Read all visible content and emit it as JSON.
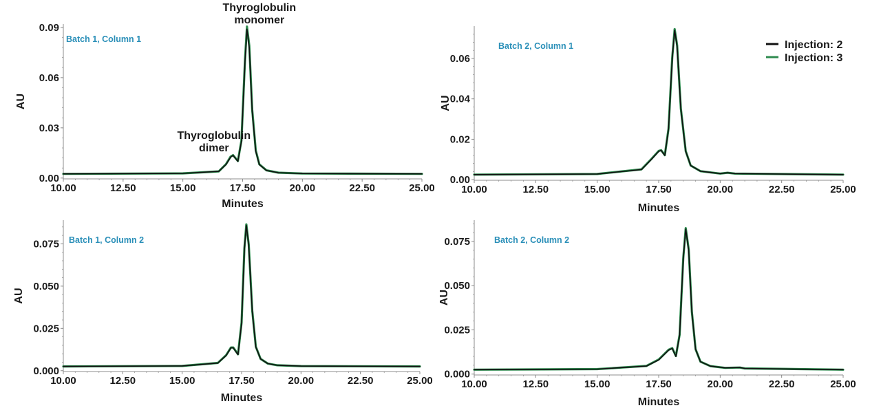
{
  "colors": {
    "injection_2": "#111111",
    "injection_3": "#2e8b4f",
    "panel_title": "#2a8fb8",
    "axis": "#8c8c8c"
  },
  "legend": {
    "placement": "top-right of upper-right panel",
    "entries": [
      {
        "label": "Injection: 2",
        "color": "#111111"
      },
      {
        "label": "Injection: 3",
        "color": "#2e8b4f"
      }
    ]
  },
  "chart_data": [
    {
      "type": "line",
      "title": "Batch 1, Column 1",
      "xlabel": "Minutes",
      "ylabel": "AU",
      "xlim": [
        10,
        25
      ],
      "ylim": [
        -0.0005,
        0.092
      ],
      "x_ticks": [
        "10.00",
        "12.50",
        "15.00",
        "17.50",
        "20.00",
        "22.50",
        "25.00"
      ],
      "y_ticks": [
        "0.00",
        "0.03",
        "0.06",
        "0.09"
      ],
      "y_tick_values": [
        0,
        0.03,
        0.06,
        0.09
      ],
      "grid": false,
      "annotations": [
        {
          "lines": [
            "Thyroglobulin",
            "dimer"
          ],
          "x": 16.3,
          "y": 0.0135
        },
        {
          "lines": [
            "Thyroglobulin",
            "monomer"
          ],
          "x": 18.2,
          "y": 0.09
        }
      ],
      "series": [
        {
          "name": "Injection: 2",
          "x": [
            10.0,
            15.0,
            16.5,
            16.8,
            17.0,
            17.1,
            17.3,
            17.45,
            17.6,
            17.68,
            17.78,
            17.9,
            18.05,
            18.2,
            18.5,
            19.0,
            20.0,
            25.0
          ],
          "y": [
            0.0025,
            0.0028,
            0.004,
            0.008,
            0.0125,
            0.0135,
            0.01,
            0.022,
            0.07,
            0.089,
            0.078,
            0.04,
            0.016,
            0.008,
            0.0045,
            0.0032,
            0.0027,
            0.0025
          ]
        },
        {
          "name": "Injection: 3",
          "x": [
            10.0,
            15.0,
            16.5,
            16.8,
            17.0,
            17.1,
            17.3,
            17.45,
            17.6,
            17.68,
            17.78,
            17.9,
            18.05,
            18.2,
            18.5,
            19.0,
            20.0,
            25.0
          ],
          "y": [
            0.0025,
            0.0028,
            0.004,
            0.0082,
            0.0128,
            0.0137,
            0.0102,
            0.0225,
            0.071,
            0.0905,
            0.079,
            0.041,
            0.0165,
            0.0082,
            0.0046,
            0.0032,
            0.0027,
            0.0025
          ]
        }
      ]
    },
    {
      "type": "line",
      "title": "Batch 2, Column 1",
      "xlabel": "Minutes",
      "ylabel": "AU",
      "xlim": [
        10,
        25
      ],
      "ylim": [
        -0.0003,
        0.076
      ],
      "x_ticks": [
        "10.00",
        "12.50",
        "15.00",
        "17.50",
        "20.00",
        "22.50",
        "25.00"
      ],
      "y_ticks": [
        "0.00",
        "0.02",
        "0.04",
        "0.06"
      ],
      "y_tick_values": [
        0,
        0.02,
        0.04,
        0.06
      ],
      "grid": false,
      "series": [
        {
          "name": "Injection: 2",
          "x": [
            10.0,
            15.0,
            16.8,
            17.2,
            17.5,
            17.6,
            17.75,
            17.9,
            18.05,
            18.15,
            18.25,
            18.4,
            18.6,
            18.8,
            19.2,
            20.0,
            20.3,
            20.6,
            25.0
          ],
          "y": [
            0.0025,
            0.0028,
            0.005,
            0.01,
            0.014,
            0.0145,
            0.012,
            0.025,
            0.06,
            0.074,
            0.066,
            0.035,
            0.014,
            0.007,
            0.0042,
            0.003,
            0.0034,
            0.003,
            0.0025
          ]
        },
        {
          "name": "Injection: 3",
          "x": [
            10.0,
            15.0,
            16.8,
            17.2,
            17.5,
            17.6,
            17.75,
            17.9,
            18.05,
            18.15,
            18.25,
            18.4,
            18.6,
            18.8,
            19.2,
            20.0,
            20.3,
            20.6,
            25.0
          ],
          "y": [
            0.0025,
            0.0028,
            0.0051,
            0.0102,
            0.0142,
            0.0146,
            0.0121,
            0.0252,
            0.0605,
            0.0745,
            0.0665,
            0.0352,
            0.0141,
            0.007,
            0.0042,
            0.003,
            0.0034,
            0.003,
            0.0025
          ]
        }
      ]
    },
    {
      "type": "line",
      "title": "Batch 1, Column 2",
      "xlabel": "Minutes",
      "ylabel": "AU",
      "xlim": [
        10,
        25
      ],
      "ylim": [
        -0.0005,
        0.089
      ],
      "x_ticks": [
        "10.00",
        "12.50",
        "15.00",
        "17.50",
        "20.00",
        "22.50",
        "25.00"
      ],
      "y_ticks": [
        "0.000",
        "0.025",
        "0.050",
        "0.075"
      ],
      "y_tick_values": [
        0,
        0.025,
        0.05,
        0.075
      ],
      "grid": false,
      "series": [
        {
          "name": "Injection: 2",
          "x": [
            10.0,
            15.0,
            16.5,
            16.85,
            17.05,
            17.15,
            17.35,
            17.5,
            17.62,
            17.7,
            17.8,
            17.95,
            18.1,
            18.3,
            18.6,
            19.0,
            20.0,
            25.0
          ],
          "y": [
            0.0025,
            0.0028,
            0.0045,
            0.009,
            0.0135,
            0.0135,
            0.0095,
            0.028,
            0.072,
            0.086,
            0.074,
            0.035,
            0.014,
            0.007,
            0.0042,
            0.0032,
            0.0027,
            0.0025
          ]
        },
        {
          "name": "Injection: 3",
          "x": [
            10.0,
            15.0,
            16.5,
            16.85,
            17.05,
            17.15,
            17.35,
            17.5,
            17.62,
            17.7,
            17.8,
            17.95,
            18.1,
            18.3,
            18.6,
            19.0,
            20.0,
            25.0
          ],
          "y": [
            0.0025,
            0.0028,
            0.0046,
            0.0092,
            0.0137,
            0.0137,
            0.0097,
            0.0285,
            0.0725,
            0.0865,
            0.0745,
            0.0355,
            0.0142,
            0.007,
            0.0042,
            0.0032,
            0.0027,
            0.0025
          ]
        }
      ]
    },
    {
      "type": "line",
      "title": "Batch 2, Column 2",
      "xlabel": "Minutes",
      "ylabel": "AU",
      "xlim": [
        10,
        25
      ],
      "ylim": [
        -0.0005,
        0.087
      ],
      "x_ticks": [
        "10.00",
        "12.50",
        "15.00",
        "17.50",
        "20.00",
        "22.50",
        "25.00"
      ],
      "y_ticks": [
        "0.000",
        "0.025",
        "0.050",
        "0.075"
      ],
      "y_tick_values": [
        0,
        0.025,
        0.05,
        0.075
      ],
      "grid": false,
      "series": [
        {
          "name": "Injection: 2",
          "x": [
            10.0,
            15.0,
            17.0,
            17.5,
            17.9,
            18.05,
            18.2,
            18.35,
            18.5,
            18.6,
            18.72,
            18.85,
            19.0,
            19.2,
            19.6,
            20.2,
            20.8,
            21.0,
            25.0
          ],
          "y": [
            0.0025,
            0.0028,
            0.0045,
            0.008,
            0.0135,
            0.0145,
            0.01,
            0.022,
            0.065,
            0.082,
            0.07,
            0.035,
            0.014,
            0.007,
            0.0045,
            0.0035,
            0.0037,
            0.0032,
            0.0025
          ]
        },
        {
          "name": "Injection: 3",
          "x": [
            10.0,
            15.0,
            17.0,
            17.5,
            17.9,
            18.05,
            18.2,
            18.35,
            18.5,
            18.6,
            18.72,
            18.85,
            19.0,
            19.2,
            19.6,
            20.2,
            20.8,
            21.0,
            25.0
          ],
          "y": [
            0.0025,
            0.0028,
            0.0046,
            0.0082,
            0.0137,
            0.0147,
            0.0102,
            0.0222,
            0.0655,
            0.0825,
            0.0705,
            0.0352,
            0.0141,
            0.007,
            0.0045,
            0.0035,
            0.0037,
            0.0032,
            0.0025
          ]
        }
      ]
    }
  ]
}
